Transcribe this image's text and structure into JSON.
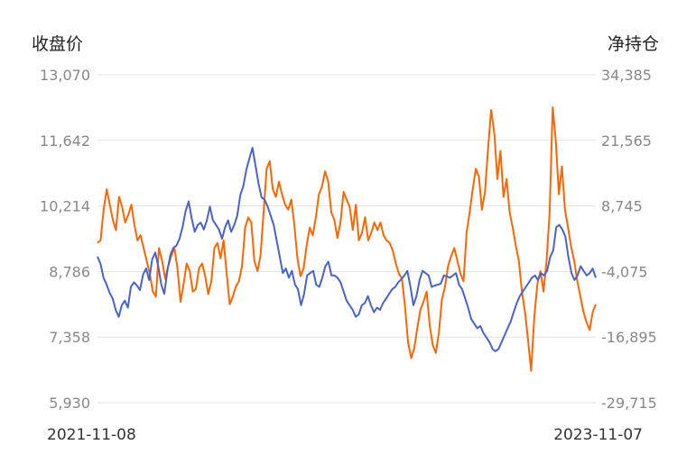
{
  "chart_data": {
    "type": "line",
    "left_axis_label": "收盘价",
    "right_axis_label": "净持仓",
    "x_start_label": "2021-11-08",
    "x_end_label": "2023-11-07",
    "left_ticks": [
      "13,070",
      "11,642",
      "10,214",
      "8,786",
      "7,358",
      "5,930"
    ],
    "right_ticks": [
      "34,385",
      "21,565",
      "8,745",
      "-4,075",
      "-16,895",
      "-29,715"
    ],
    "left_ylim": [
      5930,
      13070
    ],
    "right_ylim": [
      -29715,
      34385
    ],
    "grid": true,
    "series": [
      {
        "color": "#4a63c8",
        "axis": "left",
        "values": [
          9110,
          8950,
          8650,
          8500,
          8320,
          8200,
          7950,
          7800,
          8050,
          8150,
          8000,
          8450,
          8550,
          8480,
          8380,
          8720,
          8850,
          8600,
          9050,
          9200,
          8900,
          8500,
          8300,
          8800,
          9150,
          9300,
          9350,
          9500,
          9750,
          10100,
          10310,
          9950,
          9650,
          9800,
          9850,
          9700,
          9900,
          10200,
          9900,
          9800,
          9700,
          9500,
          9750,
          9900,
          9650,
          9800,
          10000,
          10450,
          10650,
          11000,
          11250,
          11480,
          11100,
          10700,
          10400,
          10350,
          10200,
          10000,
          9800,
          9450,
          9100,
          8750,
          8850,
          8650,
          8800,
          8500,
          8400,
          8050,
          8300,
          8700,
          8750,
          8800,
          8500,
          8450,
          8650,
          8900,
          9000,
          8700,
          8700,
          8650,
          8550,
          8350,
          8150,
          8050,
          7950,
          7800,
          7850,
          8050,
          8100,
          8250,
          8050,
          7900,
          8000,
          7950,
          8100,
          8200,
          8300,
          8400,
          8450,
          8550,
          8620,
          8700,
          8800,
          8450,
          8050,
          8250,
          8600,
          8800,
          8750,
          8700,
          8450,
          8480,
          8500,
          8520,
          8700,
          8680,
          8650,
          8700,
          8750,
          8500,
          8400,
          8200,
          8000,
          7750,
          7650,
          7550,
          7600,
          7450,
          7350,
          7250,
          7100,
          7050,
          7100,
          7250,
          7400,
          7550,
          7700,
          7900,
          8100,
          8250,
          8350,
          8450,
          8550,
          8650,
          8700,
          8600,
          8750,
          8700,
          8800,
          9100,
          9250,
          9750,
          9800,
          9700,
          9550,
          9100,
          8750,
          8600,
          8700,
          8900,
          8800,
          8700,
          8750,
          8850,
          8650
        ]
      },
      {
        "color": "#ff6600",
        "axis": "right",
        "values": [
          1500,
          2000,
          8000,
          12000,
          9000,
          6000,
          4000,
          10500,
          8500,
          5500,
          7000,
          9000,
          5000,
          2000,
          3000,
          500,
          -2000,
          -4500,
          -8000,
          -9000,
          500,
          -2000,
          -5500,
          -3000,
          -1000,
          500,
          -3500,
          -10000,
          -6500,
          -2500,
          -4000,
          -8000,
          -7500,
          -3500,
          -2500,
          -5000,
          -8500,
          -6000,
          500,
          1500,
          -1500,
          2000,
          -4500,
          -10500,
          -9000,
          -7000,
          -6000,
          -3000,
          4500,
          6500,
          5500,
          -2000,
          -4000,
          -1000,
          7500,
          16000,
          17500,
          12000,
          10500,
          13500,
          11000,
          9000,
          8000,
          10000,
          5000,
          -1500,
          -5000,
          -3500,
          1000,
          4500,
          3000,
          6500,
          11000,
          12500,
          15500,
          13500,
          7500,
          6000,
          2500,
          5500,
          11500,
          10000,
          8500,
          4000,
          9000,
          2000,
          3500,
          6500,
          2000,
          3500,
          5500,
          4000,
          5500,
          3000,
          2000,
          1500,
          0,
          -2500,
          -4500,
          -5500,
          -11000,
          -18000,
          -21000,
          -19000,
          -15000,
          -11500,
          -10000,
          -8000,
          -14500,
          -18500,
          -20000,
          -16000,
          -9500,
          -7000,
          -3000,
          -1000,
          500,
          -2000,
          -4500,
          -6000,
          3500,
          7500,
          12000,
          16000,
          14500,
          8000,
          11500,
          20000,
          27500,
          23000,
          14000,
          19500,
          10500,
          14000,
          7500,
          4500,
          1000,
          -2000,
          -8000,
          -12000,
          -17500,
          -23500,
          -13000,
          -6500,
          -4000,
          -8000,
          -2000,
          7500,
          28000,
          21500,
          11000,
          16500,
          8000,
          4500,
          800,
          -2000,
          -6000,
          -9000,
          -12000,
          -14000,
          -15500,
          -12000,
          -10500
        ]
      }
    ]
  }
}
